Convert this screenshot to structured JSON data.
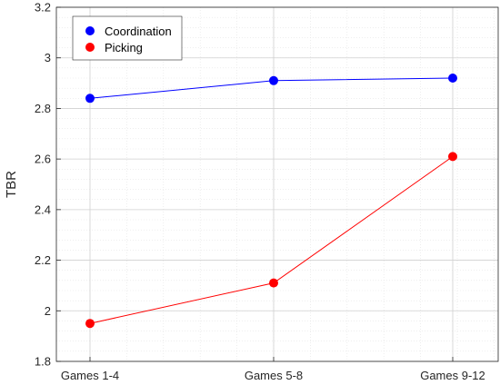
{
  "chart_data": {
    "type": "line",
    "title": "",
    "xlabel": "",
    "ylabel": "TBR",
    "categories": [
      "Games 1-4",
      "Games 5-8",
      "Games 9-12"
    ],
    "ylim": [
      1.8,
      3.2
    ],
    "yticks": [
      "1.8",
      "2",
      "2.2",
      "2.4",
      "2.6",
      "2.8",
      "3",
      "3.2"
    ],
    "ytick_values": [
      1.8,
      2.0,
      2.2,
      2.4,
      2.6,
      2.8,
      3.0,
      3.2
    ],
    "grid": true,
    "legend_position": "top-left",
    "series": [
      {
        "name": "Coordination",
        "color": "#0000ff",
        "values": [
          2.84,
          2.91,
          2.92
        ]
      },
      {
        "name": "Picking",
        "color": "#ff0000",
        "values": [
          1.95,
          2.11,
          2.61
        ]
      }
    ]
  }
}
